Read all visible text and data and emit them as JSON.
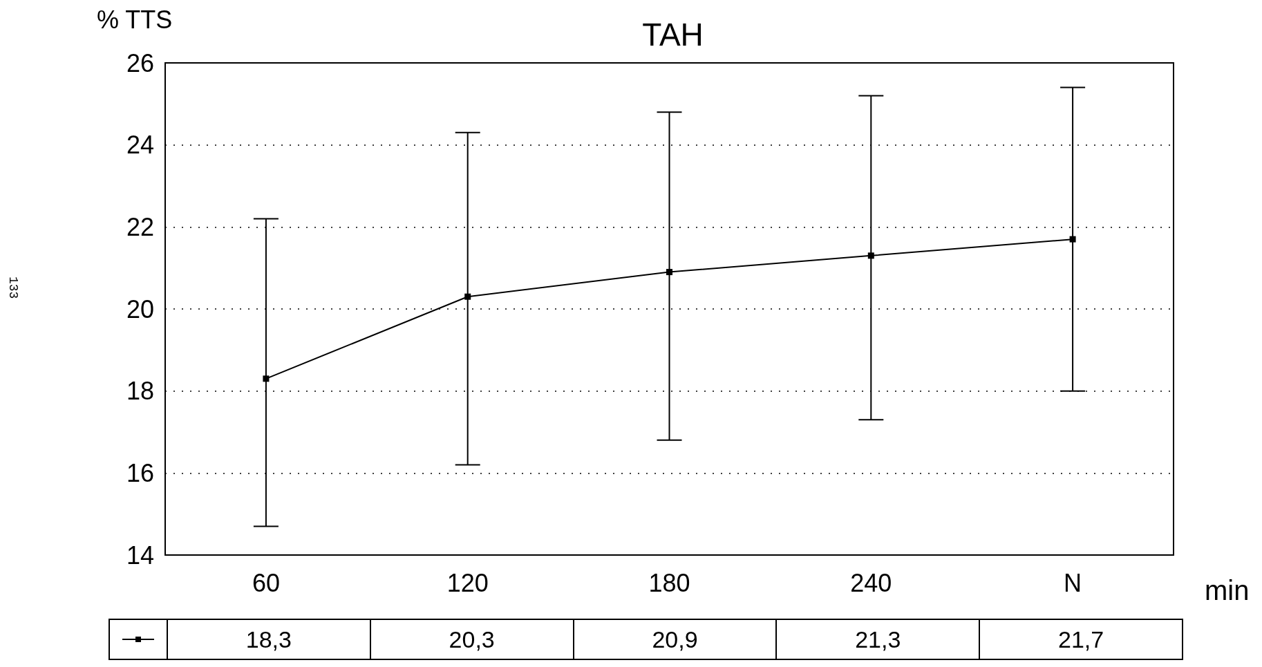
{
  "chart_data": {
    "type": "line",
    "title": "TAH",
    "ylabel": "% TTS",
    "xlabel": "min",
    "annotations": [
      "133"
    ],
    "categories": [
      "60",
      "120",
      "180",
      "240",
      "N"
    ],
    "series": [
      {
        "color": "#000000",
        "values": [
          18.3,
          20.3,
          20.9,
          21.3,
          21.7
        ],
        "errors": [
          [
            14.7,
            22.2
          ],
          [
            16.2,
            24.3
          ],
          [
            16.8,
            24.8
          ],
          [
            17.3,
            25.2
          ],
          [
            18.0,
            25.4
          ]
        ],
        "value_labels": [
          "18,3",
          "20,3",
          "20,9",
          "21,3",
          "21,7"
        ]
      }
    ],
    "ylim": [
      14,
      26
    ],
    "yticks": [
      14,
      16,
      18,
      20,
      22,
      24,
      26
    ],
    "grid": "y",
    "marker": "square",
    "line_style": "solid"
  }
}
